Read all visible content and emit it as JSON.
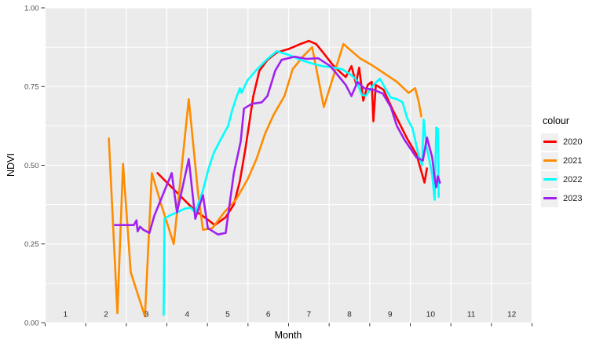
{
  "chart_data": {
    "type": "line",
    "title": "",
    "xlabel": "Month",
    "ylabel": "NDVI",
    "legend_title": "colour",
    "legend_position": "right",
    "grid": true,
    "panel_bg": "#EBEBEB",
    "grid_color": "#FFFFFF",
    "tick_color": "#333333",
    "axis_label_color": "#4D4D4D",
    "month_label_color": "#2b2b2b",
    "x_axis": {
      "range": [
        1,
        13
      ],
      "gridlines": [
        1,
        2,
        3,
        4,
        5,
        6,
        7,
        8,
        9,
        10,
        11,
        12,
        13
      ],
      "tick_labels": [
        {
          "label": "1",
          "x": 1.5
        },
        {
          "label": "2",
          "x": 2.5
        },
        {
          "label": "3",
          "x": 3.5
        },
        {
          "label": "4",
          "x": 4.5
        },
        {
          "label": "5",
          "x": 5.5
        },
        {
          "label": "6",
          "x": 6.5
        },
        {
          "label": "7",
          "x": 7.5
        },
        {
          "label": "8",
          "x": 8.5
        },
        {
          "label": "9",
          "x": 9.5
        },
        {
          "label": "10",
          "x": 10.5
        },
        {
          "label": "11",
          "x": 11.5
        },
        {
          "label": "12",
          "x": 12.5
        }
      ]
    },
    "y_axis": {
      "range": [
        0,
        1
      ],
      "minor_step": 0.125,
      "tick_labels": [
        {
          "label": "0.00",
          "y": 0.0
        },
        {
          "label": "0.25",
          "y": 0.25
        },
        {
          "label": "0.50",
          "y": 0.5
        },
        {
          "label": "0.75",
          "y": 0.75
        },
        {
          "label": "1.00",
          "y": 1.0
        }
      ]
    },
    "series": [
      {
        "name": "2020",
        "color": "#FF0000",
        "points": [
          [
            3.77,
            0.475
          ],
          [
            4.35,
            0.4
          ],
          [
            4.7,
            0.355
          ],
          [
            4.93,
            0.335
          ],
          [
            5.18,
            0.31
          ],
          [
            5.45,
            0.335
          ],
          [
            5.65,
            0.375
          ],
          [
            5.8,
            0.45
          ],
          [
            5.94,
            0.555
          ],
          [
            6.13,
            0.72
          ],
          [
            6.28,
            0.8
          ],
          [
            6.48,
            0.835
          ],
          [
            6.71,
            0.858
          ],
          [
            7.02,
            0.87
          ],
          [
            7.29,
            0.885
          ],
          [
            7.5,
            0.895
          ],
          [
            7.68,
            0.885
          ],
          [
            7.87,
            0.855
          ],
          [
            8.08,
            0.82
          ],
          [
            8.28,
            0.795
          ],
          [
            8.41,
            0.78
          ],
          [
            8.55,
            0.815
          ],
          [
            8.66,
            0.76
          ],
          [
            8.74,
            0.81
          ],
          [
            8.84,
            0.705
          ],
          [
            8.95,
            0.755
          ],
          [
            9.05,
            0.765
          ],
          [
            9.09,
            0.64
          ],
          [
            9.15,
            0.755
          ],
          [
            9.34,
            0.74
          ],
          [
            9.57,
            0.675
          ],
          [
            9.92,
            0.585
          ],
          [
            10.15,
            0.535
          ],
          [
            10.35,
            0.445
          ],
          [
            10.41,
            0.49
          ]
        ]
      },
      {
        "name": "2021",
        "color": "#FF8C00",
        "points": [
          [
            2.57,
            0.585
          ],
          [
            2.78,
            0.03
          ],
          [
            2.92,
            0.505
          ],
          [
            3.11,
            0.16
          ],
          [
            3.46,
            0.02
          ],
          [
            3.63,
            0.475
          ],
          [
            3.86,
            0.375
          ],
          [
            4.17,
            0.25
          ],
          [
            4.54,
            0.71
          ],
          [
            4.77,
            0.41
          ],
          [
            4.89,
            0.295
          ],
          [
            5.12,
            0.3
          ],
          [
            5.41,
            0.35
          ],
          [
            5.7,
            0.39
          ],
          [
            5.99,
            0.455
          ],
          [
            6.21,
            0.52
          ],
          [
            6.42,
            0.6
          ],
          [
            6.63,
            0.66
          ],
          [
            6.9,
            0.72
          ],
          [
            7.1,
            0.805
          ],
          [
            7.35,
            0.845
          ],
          [
            7.58,
            0.875
          ],
          [
            7.87,
            0.685
          ],
          [
            8.35,
            0.885
          ],
          [
            8.76,
            0.84
          ],
          [
            9.03,
            0.82
          ],
          [
            9.38,
            0.79
          ],
          [
            9.67,
            0.765
          ],
          [
            9.96,
            0.73
          ],
          [
            10.12,
            0.745
          ],
          [
            10.21,
            0.7
          ],
          [
            10.27,
            0.655
          ]
        ]
      },
      {
        "name": "2022",
        "color": "#00FFFF",
        "points": [
          [
            3.92,
            0.025
          ],
          [
            3.94,
            0.33
          ],
          [
            4.06,
            0.34
          ],
          [
            4.25,
            0.35
          ],
          [
            4.44,
            0.362
          ],
          [
            4.58,
            0.365
          ],
          [
            4.7,
            0.35
          ],
          [
            4.89,
            0.42
          ],
          [
            5.03,
            0.49
          ],
          [
            5.16,
            0.54
          ],
          [
            5.32,
            0.58
          ],
          [
            5.51,
            0.625
          ],
          [
            5.61,
            0.675
          ],
          [
            5.7,
            0.71
          ],
          [
            5.8,
            0.745
          ],
          [
            5.84,
            0.73
          ],
          [
            5.99,
            0.77
          ],
          [
            6.19,
            0.8
          ],
          [
            6.48,
            0.838
          ],
          [
            6.71,
            0.862
          ],
          [
            7.02,
            0.85
          ],
          [
            7.29,
            0.835
          ],
          [
            7.54,
            0.825
          ],
          [
            7.83,
            0.815
          ],
          [
            8.12,
            0.81
          ],
          [
            8.32,
            0.805
          ],
          [
            8.51,
            0.79
          ],
          [
            8.65,
            0.775
          ],
          [
            8.8,
            0.725
          ],
          [
            8.9,
            0.72
          ],
          [
            9.09,
            0.755
          ],
          [
            9.25,
            0.775
          ],
          [
            9.38,
            0.745
          ],
          [
            9.52,
            0.715
          ],
          [
            9.67,
            0.71
          ],
          [
            9.81,
            0.7
          ],
          [
            9.92,
            0.65
          ],
          [
            10.06,
            0.615
          ],
          [
            10.19,
            0.54
          ],
          [
            10.29,
            0.5
          ],
          [
            10.33,
            0.645
          ],
          [
            10.39,
            0.565
          ],
          [
            10.48,
            0.51
          ],
          [
            10.54,
            0.47
          ],
          [
            10.6,
            0.39
          ],
          [
            10.64,
            0.62
          ],
          [
            10.68,
            0.615
          ],
          [
            10.7,
            0.4
          ]
        ]
      },
      {
        "name": "2023",
        "color": "#A020F0",
        "points": [
          [
            2.72,
            0.31
          ],
          [
            3.19,
            0.31
          ],
          [
            3.25,
            0.325
          ],
          [
            3.28,
            0.29
          ],
          [
            3.34,
            0.305
          ],
          [
            3.42,
            0.295
          ],
          [
            3.57,
            0.285
          ],
          [
            3.69,
            0.34
          ],
          [
            4.12,
            0.475
          ],
          [
            4.25,
            0.35
          ],
          [
            4.54,
            0.52
          ],
          [
            4.7,
            0.33
          ],
          [
            4.89,
            0.405
          ],
          [
            5.01,
            0.3
          ],
          [
            5.26,
            0.28
          ],
          [
            5.45,
            0.285
          ],
          [
            5.65,
            0.475
          ],
          [
            5.82,
            0.575
          ],
          [
            5.9,
            0.68
          ],
          [
            6.09,
            0.695
          ],
          [
            6.34,
            0.7
          ],
          [
            6.48,
            0.72
          ],
          [
            6.67,
            0.8
          ],
          [
            6.83,
            0.835
          ],
          [
            7.15,
            0.845
          ],
          [
            7.44,
            0.838
          ],
          [
            7.73,
            0.84
          ],
          [
            8.03,
            0.815
          ],
          [
            8.22,
            0.785
          ],
          [
            8.41,
            0.755
          ],
          [
            8.55,
            0.72
          ],
          [
            8.7,
            0.765
          ],
          [
            8.86,
            0.745
          ],
          [
            9.09,
            0.74
          ],
          [
            9.32,
            0.728
          ],
          [
            9.52,
            0.685
          ],
          [
            9.67,
            0.625
          ],
          [
            9.86,
            0.58
          ],
          [
            10.02,
            0.55
          ],
          [
            10.15,
            0.525
          ],
          [
            10.31,
            0.515
          ],
          [
            10.41,
            0.588
          ],
          [
            10.54,
            0.525
          ],
          [
            10.6,
            0.46
          ],
          [
            10.64,
            0.43
          ],
          [
            10.68,
            0.465
          ],
          [
            10.73,
            0.445
          ]
        ]
      }
    ]
  }
}
